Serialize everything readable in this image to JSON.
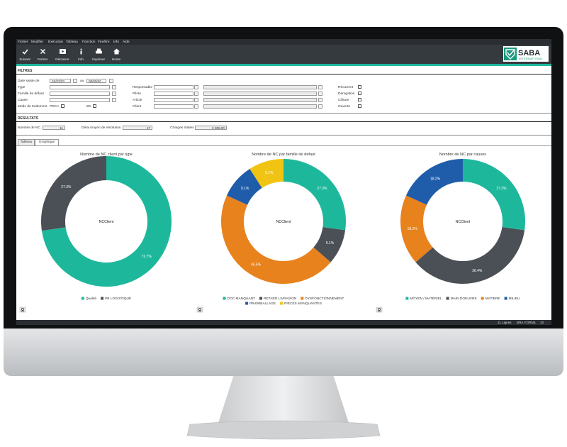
{
  "menu": [
    "Fichier",
    "Modifier",
    "Exécution",
    "Tableau",
    "Fonction",
    "Fenêtre",
    "Info",
    "Aide"
  ],
  "toolbar": [
    "Suivant",
    "Fermer",
    "Démarrer",
    "Info",
    "Imprimer",
    "Home"
  ],
  "logo": {
    "name": "SABA",
    "subtitle": "INTERNATIONAL"
  },
  "filters": {
    "title": "FILTRES",
    "date": {
      "label": "Date saisie de",
      "from": "01/03/20",
      "to_label": "au",
      "to": "08/09/20"
    },
    "fields": [
      "Type",
      "Famille de défaut",
      "Cause"
    ],
    "mode": {
      "label": "Mode de traitement",
      "options": [
        "PDCA",
        "8D"
      ]
    },
    "lookups": [
      "Responsable",
      "Pilote",
      "Article",
      "Client"
    ],
    "flags": [
      "Récurrent",
      "Dérogation",
      "Clôture",
      "Ouverte"
    ]
  },
  "results": {
    "title": "RESULTATS",
    "items": [
      {
        "label": "Nombre de NC",
        "value": "11"
      },
      {
        "label": "Délai moyen de résolution",
        "value": "17"
      },
      {
        "label": "Charges totales",
        "value": "2 305,00"
      }
    ]
  },
  "tabs": [
    "Tableau",
    "Graphique"
  ],
  "charts": [
    {
      "type": "donut",
      "title": "Nombre de NC client par type",
      "center_label": "NCClient",
      "categories": [
        "Qualité",
        "PB LOGISTIQUE"
      ],
      "values": [
        72.7,
        27.3
      ],
      "value_labels": [
        "72.7%",
        "27.3%"
      ],
      "colors": [
        "#1db89c",
        "#4b5056"
      ]
    },
    {
      "type": "donut",
      "title": "Nombre de NC par famille de défaut",
      "center_label": "NCClient",
      "categories": [
        "DOC MANQUANT",
        "RETARD LIVRAISON",
        "DYSFONCTIONNEMENT",
        "PB-EMBALLAGE",
        "PIECES MANQUANTES"
      ],
      "values": [
        27.3,
        9.1,
        45.5,
        9.1,
        9.1
      ],
      "value_labels": [
        "27.3%",
        "9.1%",
        "45.5%",
        "9.1%",
        "9.1%"
      ],
      "colors": [
        "#1db89c",
        "#4b5056",
        "#e8821d",
        "#1f5dab",
        "#f1c414"
      ]
    },
    {
      "type": "donut",
      "title": "Nombre de NC par causes",
      "center_label": "NCClient",
      "categories": [
        "MOYEN / MATERIEL",
        "MAIN DOEUVRE",
        "MATIERE",
        "MILIEU"
      ],
      "values": [
        27.3,
        36.4,
        18.2,
        18.2
      ],
      "value_labels": [
        "27.3%",
        "36.4%",
        "18.2%",
        "18.2%"
      ],
      "colors": [
        "#1db89c",
        "#4b5056",
        "#e8821d",
        "#1f5dab"
      ]
    }
  ],
  "status": [
    "11 Lignes",
    "BRA",
    "FORM1",
    "10"
  ]
}
